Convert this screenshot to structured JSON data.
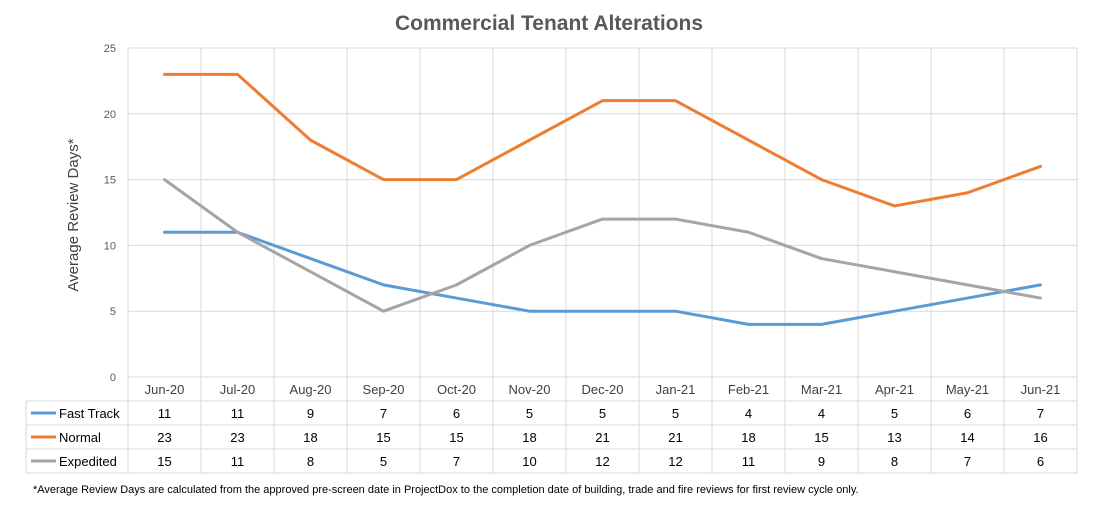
{
  "chart_data": {
    "type": "line",
    "title": "Commercial Tenant Alterations",
    "ylabel": "Average Review Days*",
    "xlabel": "",
    "ylim": [
      0,
      25
    ],
    "yticks": [
      0,
      5,
      10,
      15,
      20,
      25
    ],
    "grid": true,
    "legend": "data-table-below",
    "categories": [
      "Jun-20",
      "Jul-20",
      "Aug-20",
      "Sep-20",
      "Oct-20",
      "Nov-20",
      "Dec-20",
      "Jan-21",
      "Feb-21",
      "Mar-21",
      "Apr-21",
      "May-21",
      "Jun-21"
    ],
    "series": [
      {
        "name": "Fast Track",
        "color": "#5b9bd5",
        "values": [
          11,
          11,
          9,
          7,
          6,
          5,
          5,
          5,
          4,
          4,
          5,
          6,
          7
        ]
      },
      {
        "name": "Normal",
        "color": "#ed7d31",
        "values": [
          23,
          23,
          18,
          15,
          15,
          18,
          21,
          21,
          18,
          15,
          13,
          14,
          16
        ]
      },
      {
        "name": "Expedited",
        "color": "#a5a5a5",
        "values": [
          15,
          11,
          8,
          5,
          7,
          10,
          12,
          12,
          11,
          9,
          8,
          7,
          6
        ]
      }
    ],
    "footnote": "*Average Review Days are calculated from the approved pre-screen date in ProjectDox to the completion date of building, trade and fire reviews for first review cycle only."
  }
}
